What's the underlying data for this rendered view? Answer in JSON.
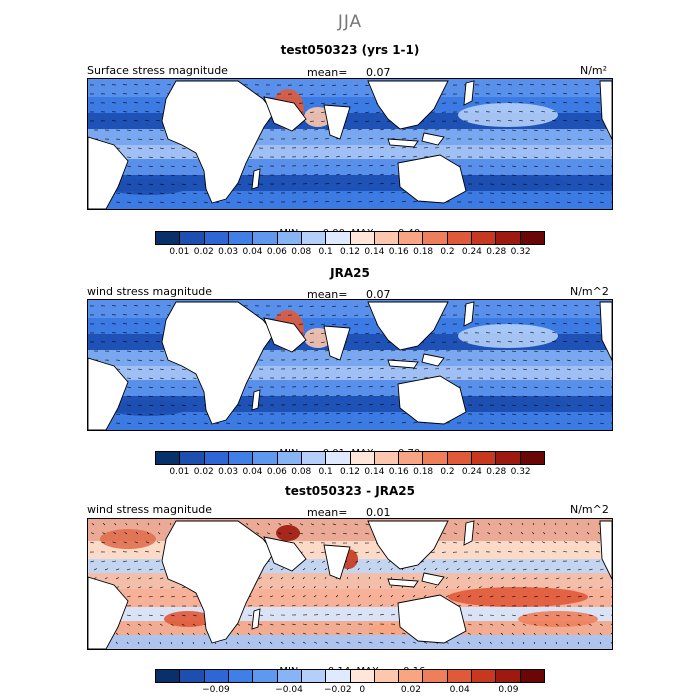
{
  "season": "JJA",
  "panels": [
    {
      "title": "test050323 (yrs 1-1)",
      "left_label": "Surface stress magnitude",
      "mean_label": "mean=",
      "mean_value": "0.07",
      "units": "N/m²",
      "min_label": "MIN =",
      "min_value": "0.00",
      "max_label": "MAX =",
      "max_value": "0.40",
      "colorbar": [
        "#08306b",
        "#1c4fb0",
        "#2e66d6",
        "#3f7fe6",
        "#5f98ef",
        "#86b4f5",
        "#b3cffa",
        "#dfeaff",
        "#ffe6d9",
        "#fcc7ad",
        "#f7a583",
        "#ef7f5b",
        "#e05a3a",
        "#c7381f",
        "#9e1a10",
        "#6b0606"
      ],
      "ticks": [
        "0.01",
        "0.02",
        "0.03",
        "0.04",
        "0.06",
        "0.08",
        "0.1",
        "0.12",
        "0.14",
        "0.16",
        "0.18",
        "0.2",
        "0.24",
        "0.28",
        "0.32"
      ],
      "type": "magnitude"
    },
    {
      "title": "JRA25",
      "left_label": "wind stress magnitude",
      "mean_label": "mean=",
      "mean_value": "0.07",
      "units": "N/m^2",
      "min_label": "MIN =",
      "min_value": "0.01",
      "max_label": "MAX =",
      "max_value": "0.70",
      "colorbar": [
        "#08306b",
        "#1c4fb0",
        "#2e66d6",
        "#3f7fe6",
        "#5f98ef",
        "#86b4f5",
        "#b3cffa",
        "#dfeaff",
        "#ffe6d9",
        "#fcc7ad",
        "#f7a583",
        "#ef7f5b",
        "#e05a3a",
        "#c7381f",
        "#9e1a10",
        "#6b0606"
      ],
      "ticks": [
        "0.01",
        "0.02",
        "0.03",
        "0.04",
        "0.06",
        "0.08",
        "0.1",
        "0.12",
        "0.14",
        "0.16",
        "0.18",
        "0.2",
        "0.24",
        "0.28",
        "0.32"
      ],
      "type": "magnitude"
    },
    {
      "title": "test050323 - JRA25",
      "left_label": "wind stress magnitude",
      "mean_label": "mean=",
      "mean_value": "0.01",
      "units": "N/m^2",
      "min_label": "MIN =",
      "min_value": "−0.14",
      "max_label": "MAX =",
      "max_value": "0.16",
      "colorbar": [
        "#08306b",
        "#1c4fb0",
        "#2e66d6",
        "#3f7fe6",
        "#5f98ef",
        "#86b4f5",
        "#b3cffa",
        "#dfeaff",
        "#ffe6d9",
        "#fcc7ad",
        "#f7a583",
        "#ef7f5b",
        "#e05a3a",
        "#c7381f",
        "#9e1a10",
        "#6b0606"
      ],
      "ticks": [
        "−0.09",
        "−0.04",
        "−0.02",
        "0",
        "0.02",
        "0.04",
        "0.09"
      ],
      "type": "difference"
    }
  ]
}
